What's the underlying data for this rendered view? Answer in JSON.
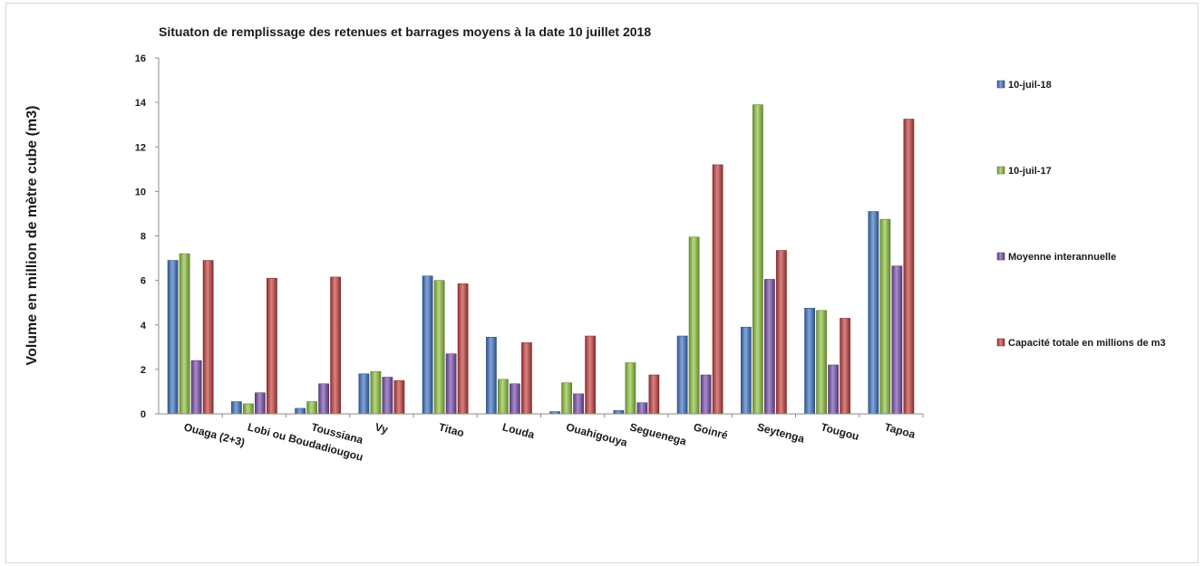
{
  "chart_data": {
    "type": "bar",
    "title": "Situaton de remplissage des retenues et barrages moyens à la date 10 juillet 2018",
    "ylabel": "Volume en million de mètre cube (m3)",
    "xlabel": "",
    "ylim": [
      0,
      16
    ],
    "yticks": [
      0,
      2,
      4,
      6,
      8,
      10,
      12,
      14,
      16
    ],
    "grid": false,
    "legend_position": "right",
    "categories": [
      "Ouaga (2+3)",
      "Lobi ou Boudadiougou",
      "Toussiana",
      "Vy",
      "Titao",
      "Louda",
      "Ouahigouya",
      "Seguenega",
      "Goinré",
      "Seytenga",
      "Tougou",
      "Tapoa"
    ],
    "series": [
      {
        "name": "10-juil-18",
        "color": "#3f74c4",
        "values": [
          6.9,
          0.55,
          0.25,
          1.8,
          6.2,
          3.45,
          0.1,
          0.15,
          3.5,
          3.9,
          4.75,
          9.1
        ]
      },
      {
        "name": "10-juil-17",
        "color": "#8fc33f",
        "values": [
          7.2,
          0.45,
          0.55,
          1.9,
          6.0,
          1.55,
          1.4,
          2.3,
          7.95,
          13.9,
          4.65,
          8.75
        ]
      },
      {
        "name": "Moyenne interannuelle",
        "color": "#7b4fad",
        "values": [
          2.4,
          0.95,
          1.35,
          1.65,
          2.7,
          1.35,
          0.9,
          0.5,
          1.75,
          6.05,
          2.2,
          6.65
        ]
      },
      {
        "name": "Capacité totale en millions de m3",
        "color": "#c4403d",
        "values": [
          6.9,
          6.1,
          6.15,
          1.5,
          5.85,
          3.2,
          3.5,
          1.75,
          11.2,
          7.35,
          4.3,
          13.25
        ]
      }
    ]
  }
}
